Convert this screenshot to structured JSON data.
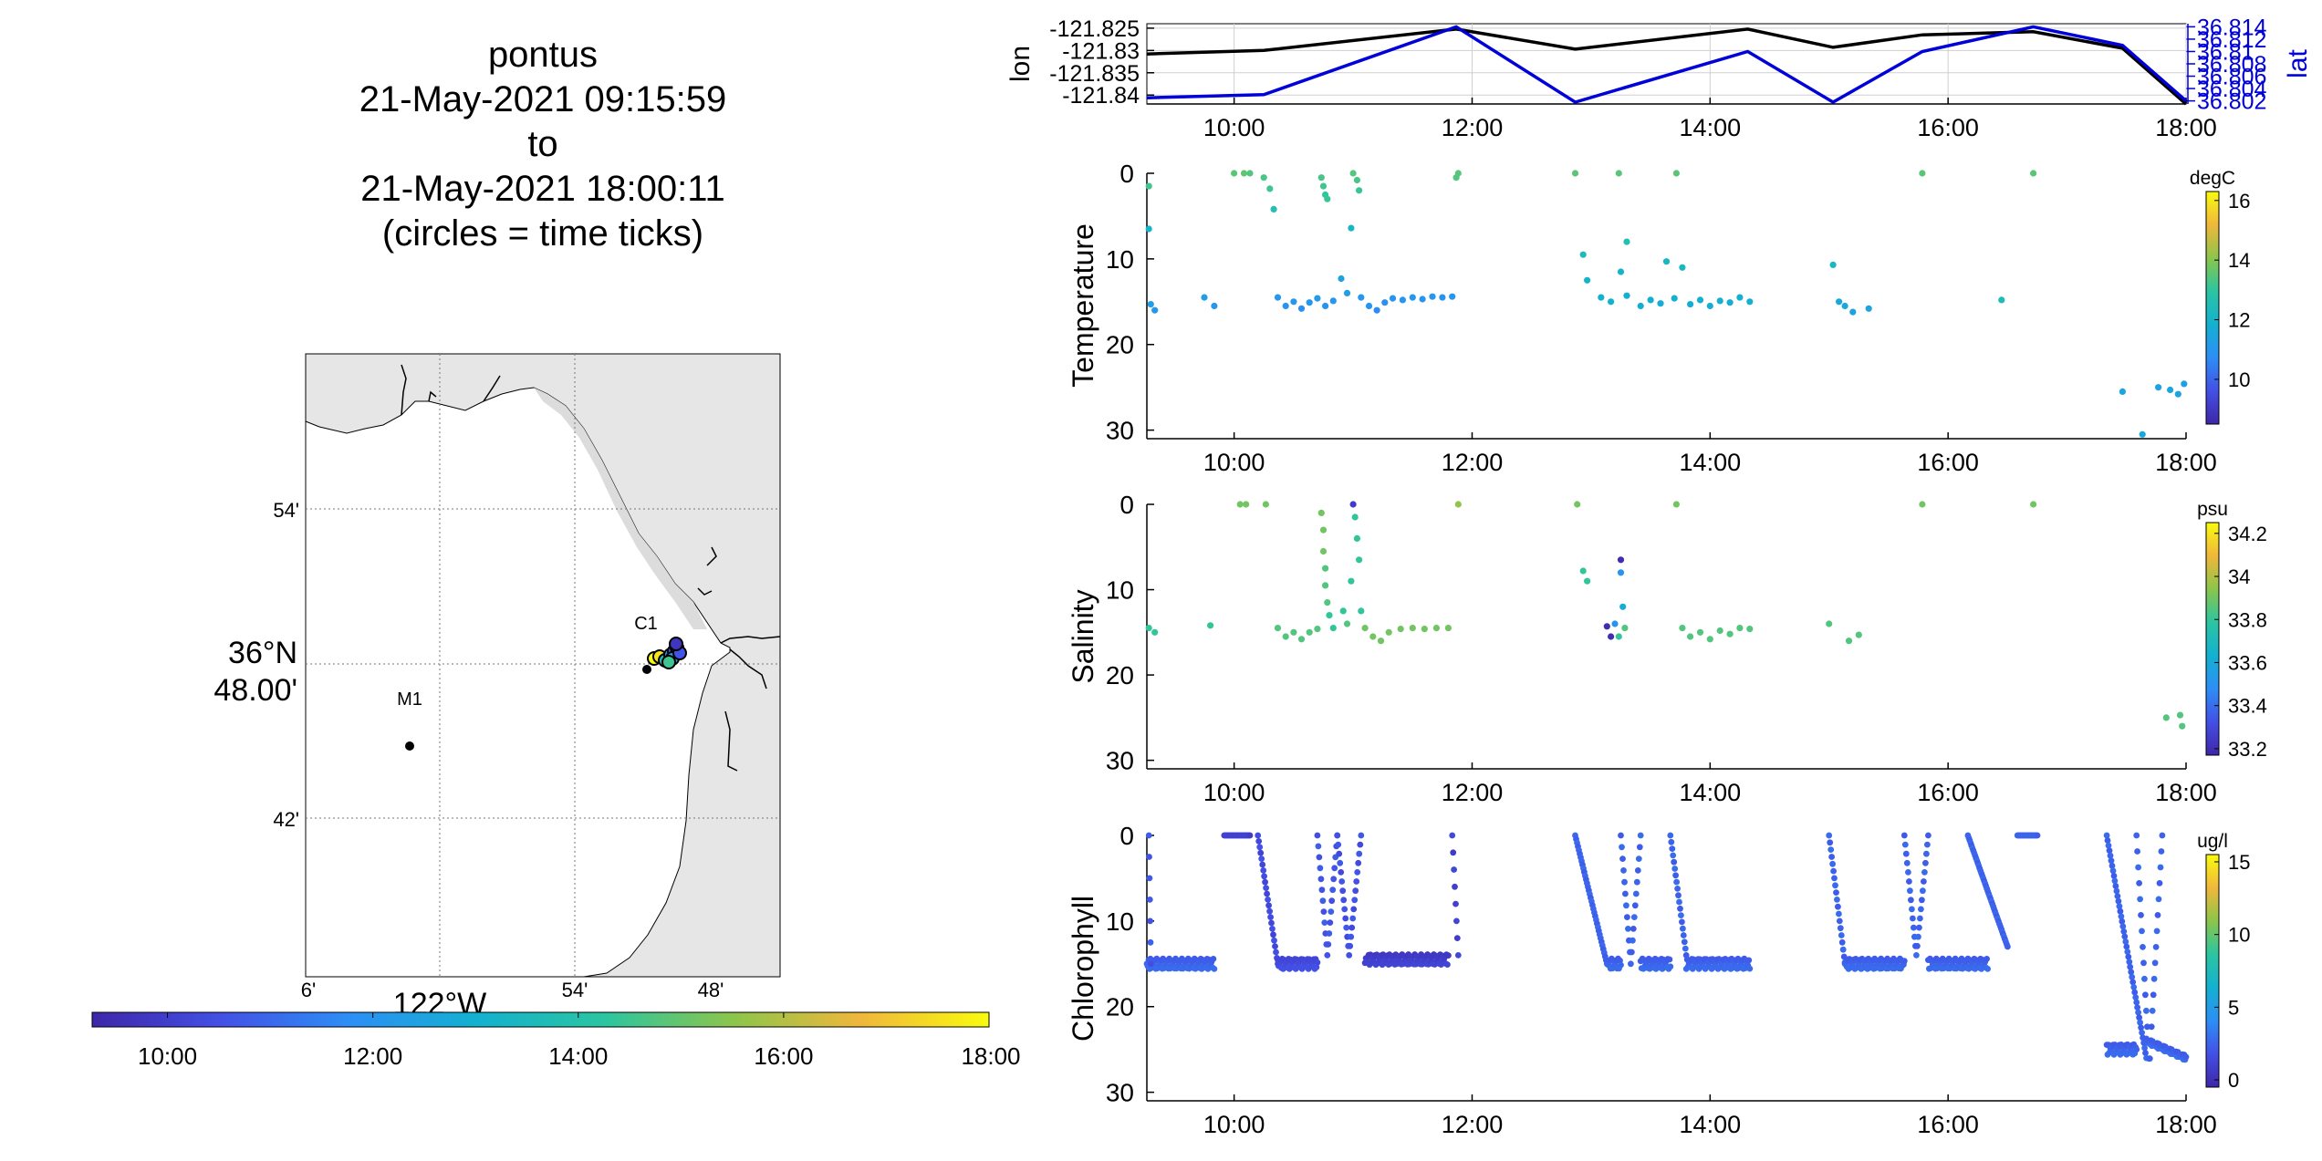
{
  "title": {
    "lines": [
      "pontus",
      "21-May-2021 09:15:59",
      "to",
      "21-May-2021 18:00:11",
      "(circles = time ticks)"
    ]
  },
  "map": {
    "lat_tick_labels": [
      "54'",
      "48.00'",
      "42'"
    ],
    "lat_degree_label": "36°N",
    "lon_tick_labels": [
      "6'",
      "54'",
      "48'"
    ],
    "lon_degree_label": "122°W",
    "stations": [
      {
        "name": "M1"
      },
      {
        "name": "C1"
      }
    ],
    "land_color": "#e6e6e6",
    "time_colorbar": {
      "tick_labels": [
        "10:00",
        "12:00",
        "14:00",
        "16:00",
        "18:00"
      ],
      "colormap": [
        "#3e26a8",
        "#4350e6",
        "#2d8ef6",
        "#13b1d0",
        "#2bc5a1",
        "#8cc54b",
        "#f0b73b",
        "#f9fb0e"
      ]
    }
  },
  "chart_data": [
    {
      "type": "line",
      "name": "position",
      "time_range": [
        "09:16",
        "18:00"
      ],
      "time_ticks": [
        "10:00",
        "12:00",
        "14:00",
        "16:00",
        "18:00"
      ],
      "ylabel": "lon",
      "y2label": "lat",
      "ylim": [
        -121.842,
        -121.824
      ],
      "y_ticks": [
        -121.825,
        -121.83,
        -121.835,
        -121.84
      ],
      "y2lim": [
        36.8015,
        36.8145
      ],
      "y2_ticks": [
        36.802,
        36.804,
        36.806,
        36.808,
        36.81,
        36.812,
        36.814
      ],
      "x": [
        "09:16",
        "10:15",
        "11:52",
        "12:52",
        "14:19",
        "15:02",
        "15:47",
        "16:43",
        "17:28",
        "18:00"
      ],
      "series": [
        {
          "name": "lon",
          "color": "#000000",
          "values": [
            -121.8308,
            -121.83,
            -121.8252,
            -121.8297,
            -121.8252,
            -121.8293,
            -121.8265,
            -121.8258,
            -121.8295,
            -121.842
          ]
        },
        {
          "name": "lat",
          "color": "#0000d8",
          "values": [
            36.8025,
            36.803,
            36.814,
            36.8018,
            36.81,
            36.8018,
            36.81,
            36.814,
            36.811,
            36.802
          ]
        }
      ]
    },
    {
      "type": "scatter",
      "name": "temperature",
      "ylabel": "Temperature",
      "ylim": [
        0,
        31
      ],
      "y_reversed": true,
      "y_ticks": [
        0,
        10,
        20,
        30
      ],
      "time_ticks": [
        "10:00",
        "12:00",
        "14:00",
        "16:00",
        "18:00"
      ],
      "colorbar": {
        "unit": "degC",
        "range": [
          8.5,
          16.3
        ],
        "ticks": [
          10,
          12,
          14,
          16
        ]
      },
      "points": [
        [
          "09:17",
          1.5,
          13.2
        ],
        [
          "09:17",
          6.5,
          12.0
        ],
        [
          "09:18",
          15.3,
          11.2
        ],
        [
          "09:20",
          16.0,
          11.0
        ],
        [
          "09:45",
          14.5,
          11.2
        ],
        [
          "09:50",
          15.5,
          11.0
        ],
        [
          "10:00",
          0.0,
          13.5
        ],
        [
          "10:05",
          0.0,
          13.6
        ],
        [
          "10:08",
          0.0,
          13.4
        ],
        [
          "10:15",
          0.5,
          13.3
        ],
        [
          "10:18",
          1.8,
          13.2
        ],
        [
          "10:20",
          4.2,
          12.6
        ],
        [
          "10:22",
          14.5,
          11.0
        ],
        [
          "10:26",
          15.5,
          10.9
        ],
        [
          "10:30",
          15.0,
          11.0
        ],
        [
          "10:34",
          15.8,
          10.8
        ],
        [
          "10:38",
          15.1,
          11.0
        ],
        [
          "10:42",
          14.6,
          11.1
        ],
        [
          "10:46",
          15.5,
          10.9
        ],
        [
          "10:50",
          14.9,
          11.0
        ],
        [
          "10:44",
          0.5,
          13.3
        ],
        [
          "10:45",
          1.5,
          13.2
        ],
        [
          "10:46",
          2.5,
          13.0
        ],
        [
          "10:47",
          3.0,
          13.1
        ],
        [
          "10:54",
          12.3,
          11.4
        ],
        [
          "10:57",
          14.0,
          11.2
        ],
        [
          "10:59",
          6.4,
          12.2
        ],
        [
          "11:00",
          0.0,
          13.4
        ],
        [
          "11:02",
          0.8,
          13.3
        ],
        [
          "11:03",
          2.0,
          13.1
        ],
        [
          "11:04",
          14.5,
          11.0
        ],
        [
          "11:08",
          15.5,
          10.9
        ],
        [
          "11:12",
          16.0,
          10.7
        ],
        [
          "11:16",
          15.1,
          10.8
        ],
        [
          "11:20",
          14.6,
          10.9
        ],
        [
          "11:25",
          14.8,
          10.9
        ],
        [
          "11:30",
          14.5,
          11.0
        ],
        [
          "11:35",
          14.7,
          10.9
        ],
        [
          "11:40",
          14.4,
          11.0
        ],
        [
          "11:45",
          14.5,
          10.9
        ],
        [
          "11:50",
          14.4,
          11.0
        ],
        [
          "11:52",
          0.5,
          13.4
        ],
        [
          "11:53",
          0.0,
          13.5
        ],
        [
          "12:52",
          0.0,
          13.5
        ],
        [
          "12:56",
          9.5,
          12.4
        ],
        [
          "12:58",
          12.5,
          12.0
        ],
        [
          "13:05",
          14.5,
          11.8
        ],
        [
          "13:10",
          15.0,
          11.9
        ],
        [
          "13:15",
          11.5,
          12.0
        ],
        [
          "13:18",
          14.3,
          11.8
        ],
        [
          "13:14",
          0.0,
          13.5
        ],
        [
          "13:18",
          8.0,
          12.6
        ],
        [
          "13:25",
          15.5,
          11.7
        ],
        [
          "13:30",
          14.8,
          11.8
        ],
        [
          "13:35",
          15.2,
          11.7
        ],
        [
          "13:38",
          10.3,
          12.2
        ],
        [
          "13:42",
          14.6,
          11.8
        ],
        [
          "13:43",
          0.0,
          13.5
        ],
        [
          "13:46",
          11.0,
          12.2
        ],
        [
          "13:50",
          15.3,
          11.7
        ],
        [
          "13:55",
          14.8,
          11.8
        ],
        [
          "14:00",
          15.5,
          11.7
        ],
        [
          "14:05",
          14.9,
          11.8
        ],
        [
          "14:10",
          15.1,
          11.7
        ],
        [
          "14:15",
          14.5,
          11.8
        ],
        [
          "14:20",
          15.0,
          11.8
        ],
        [
          "15:02",
          10.7,
          12.2
        ],
        [
          "15:05",
          15.0,
          11.6
        ],
        [
          "15:08",
          15.5,
          11.5
        ],
        [
          "15:12",
          16.2,
          11.4
        ],
        [
          "15:20",
          15.8,
          11.5
        ],
        [
          "15:47",
          0.0,
          13.5
        ],
        [
          "16:27",
          14.8,
          12.4
        ],
        [
          "16:43",
          0.0,
          13.5
        ],
        [
          "17:28",
          25.5,
          11.4
        ],
        [
          "17:38",
          30.5,
          11.6
        ],
        [
          "17:46",
          25.0,
          11.4
        ],
        [
          "17:52",
          25.3,
          11.5
        ],
        [
          "17:56",
          25.8,
          11.4
        ],
        [
          "17:59",
          24.6,
          11.3
        ]
      ]
    },
    {
      "type": "scatter",
      "name": "salinity",
      "ylabel": "Salinity",
      "ylim": [
        0,
        31
      ],
      "y_reversed": true,
      "y_ticks": [
        0,
        10,
        20,
        30
      ],
      "time_ticks": [
        "10:00",
        "12:00",
        "14:00",
        "16:00",
        "18:00"
      ],
      "colorbar": {
        "unit": "psu",
        "range": [
          33.17,
          34.25
        ],
        "ticks": [
          33.2,
          33.4,
          33.6,
          33.8,
          34,
          34.2
        ]
      },
      "points": [
        [
          "09:17",
          14.5,
          33.8
        ],
        [
          "09:20",
          15.0,
          33.8
        ],
        [
          "09:48",
          14.2,
          33.8
        ],
        [
          "10:03",
          0.0,
          33.9
        ],
        [
          "10:06",
          0.0,
          33.9
        ],
        [
          "10:16",
          0.0,
          33.9
        ],
        [
          "10:22",
          14.5,
          33.85
        ],
        [
          "10:26",
          15.5,
          33.85
        ],
        [
          "10:30",
          15.0,
          33.85
        ],
        [
          "10:34",
          15.8,
          33.85
        ],
        [
          "10:38",
          15.0,
          33.85
        ],
        [
          "10:42",
          14.6,
          33.85
        ],
        [
          "10:44",
          1.0,
          33.9
        ],
        [
          "10:45",
          3.0,
          33.9
        ],
        [
          "10:45",
          5.5,
          33.9
        ],
        [
          "10:46",
          7.5,
          33.85
        ],
        [
          "10:46",
          9.5,
          33.85
        ],
        [
          "10:47",
          11.5,
          33.85
        ],
        [
          "10:48",
          13.0,
          33.8
        ],
        [
          "10:50",
          14.5,
          33.8
        ],
        [
          "10:55",
          12.5,
          33.8
        ],
        [
          "10:57",
          14.0,
          33.85
        ],
        [
          "10:59",
          9.0,
          33.8
        ],
        [
          "11:00",
          0.0,
          33.25
        ],
        [
          "11:01",
          1.5,
          33.8
        ],
        [
          "11:02",
          4.0,
          33.8
        ],
        [
          "11:03",
          6.5,
          33.8
        ],
        [
          "11:04",
          12.5,
          33.8
        ],
        [
          "11:06",
          14.5,
          33.9
        ],
        [
          "11:10",
          15.5,
          33.9
        ],
        [
          "11:14",
          16.0,
          33.9
        ],
        [
          "11:18",
          15.0,
          33.9
        ],
        [
          "11:24",
          14.6,
          33.9
        ],
        [
          "11:30",
          14.5,
          33.9
        ],
        [
          "11:36",
          14.6,
          33.9
        ],
        [
          "11:42",
          14.5,
          33.9
        ],
        [
          "11:48",
          14.5,
          33.9
        ],
        [
          "11:53",
          0.0,
          33.95
        ],
        [
          "12:53",
          0.0,
          33.9
        ],
        [
          "12:56",
          7.8,
          33.8
        ],
        [
          "12:58",
          9.0,
          33.8
        ],
        [
          "13:08",
          14.3,
          33.2
        ],
        [
          "13:10",
          15.5,
          33.2
        ],
        [
          "13:12",
          14.0,
          33.5
        ],
        [
          "13:14",
          15.5,
          33.8
        ],
        [
          "13:15",
          6.5,
          33.2
        ],
        [
          "13:15",
          8.0,
          33.5
        ],
        [
          "13:16",
          12.0,
          33.6
        ],
        [
          "13:17",
          14.5,
          33.85
        ],
        [
          "13:43",
          0.0,
          33.9
        ],
        [
          "13:46",
          14.5,
          33.85
        ],
        [
          "13:50",
          15.5,
          33.85
        ],
        [
          "13:55",
          15.0,
          33.85
        ],
        [
          "14:00",
          15.8,
          33.85
        ],
        [
          "14:05",
          14.8,
          33.85
        ],
        [
          "14:10",
          15.2,
          33.85
        ],
        [
          "14:15",
          14.5,
          33.85
        ],
        [
          "14:20",
          14.6,
          33.85
        ],
        [
          "15:00",
          14.0,
          33.85
        ],
        [
          "15:10",
          16.0,
          33.85
        ],
        [
          "15:15",
          15.3,
          33.85
        ],
        [
          "15:47",
          0.0,
          33.9
        ],
        [
          "16:43",
          0.0,
          33.9
        ],
        [
          "17:50",
          25.0,
          33.85
        ],
        [
          "17:57",
          24.7,
          33.85
        ],
        [
          "17:58",
          26.0,
          33.85
        ]
      ]
    },
    {
      "type": "scatter",
      "name": "chlorophyll",
      "ylabel": "Chlorophyll",
      "ylim": [
        0,
        31
      ],
      "y_reversed": true,
      "y_ticks": [
        0,
        10,
        20,
        30
      ],
      "time_ticks": [
        "10:00",
        "12:00",
        "14:00",
        "16:00",
        "18:00"
      ],
      "colorbar": {
        "unit": "ug/l",
        "range": [
          -0.5,
          15.5
        ],
        "ticks": [
          0,
          5,
          10,
          15
        ]
      },
      "profiles": [
        {
          "start": "09:16",
          "end": "09:50",
          "kind": "flat",
          "depth": 15,
          "chl": 2.5
        },
        {
          "start": "09:17",
          "end": "09:18",
          "kind": "cast",
          "depth": 15,
          "chl": 2.0
        },
        {
          "start": "09:55",
          "end": "10:08",
          "kind": "surface",
          "depth": 0,
          "chl": 1.0
        },
        {
          "start": "10:12",
          "end": "10:22",
          "kind": "cast",
          "depth": 15,
          "chl": 1.5
        },
        {
          "start": "10:22",
          "end": "10:42",
          "kind": "flat",
          "depth": 15,
          "chl": 1.5
        },
        {
          "start": "10:42",
          "end": "10:52",
          "kind": "vee",
          "depth": 14,
          "chl": 2.0
        },
        {
          "start": "10:52",
          "end": "11:04",
          "kind": "vee",
          "depth": 14,
          "chl": 1.8
        },
        {
          "start": "11:06",
          "end": "11:48",
          "kind": "flat",
          "depth": 14.5,
          "chl": 0.8
        },
        {
          "start": "11:50",
          "end": "11:53",
          "kind": "cast",
          "depth": 14,
          "chl": 1.0
        },
        {
          "start": "12:52",
          "end": "13:08",
          "kind": "cast",
          "depth": 15,
          "chl": 2.5
        },
        {
          "start": "13:08",
          "end": "13:15",
          "kind": "flat",
          "depth": 15,
          "chl": 2.5
        },
        {
          "start": "13:15",
          "end": "13:25",
          "kind": "vee",
          "depth": 15,
          "chl": 2.5
        },
        {
          "start": "13:25",
          "end": "13:40",
          "kind": "flat",
          "depth": 15,
          "chl": 2.5
        },
        {
          "start": "13:40",
          "end": "13:48",
          "kind": "cast",
          "depth": 14,
          "chl": 2.5
        },
        {
          "start": "13:48",
          "end": "14:20",
          "kind": "flat",
          "depth": 15,
          "chl": 2.5
        },
        {
          "start": "15:00",
          "end": "15:08",
          "kind": "cast",
          "depth": 15,
          "chl": 2.5
        },
        {
          "start": "15:08",
          "end": "15:38",
          "kind": "flat",
          "depth": 15,
          "chl": 2.5
        },
        {
          "start": "15:38",
          "end": "15:50",
          "kind": "vee",
          "depth": 14,
          "chl": 2.5
        },
        {
          "start": "15:50",
          "end": "16:20",
          "kind": "flat",
          "depth": 15,
          "chl": 2.5
        },
        {
          "start": "16:10",
          "end": "16:30",
          "kind": "cast",
          "depth": 13,
          "chl": 2.5
        },
        {
          "start": "16:35",
          "end": "16:45",
          "kind": "surface",
          "depth": 0,
          "chl": 2.5
        },
        {
          "start": "17:20",
          "end": "17:40",
          "kind": "cast",
          "depth": 26,
          "chl": 2.5
        },
        {
          "start": "17:35",
          "end": "17:48",
          "kind": "vee",
          "depth": 27,
          "chl": 2.5
        },
        {
          "start": "17:40",
          "end": "18:00",
          "kind": "flat-slope",
          "depth": 24,
          "depth_end": 26,
          "chl": 2.5
        },
        {
          "start": "17:20",
          "end": "17:35",
          "kind": "flat",
          "depth": 25,
          "chl": 2.5
        }
      ]
    }
  ]
}
